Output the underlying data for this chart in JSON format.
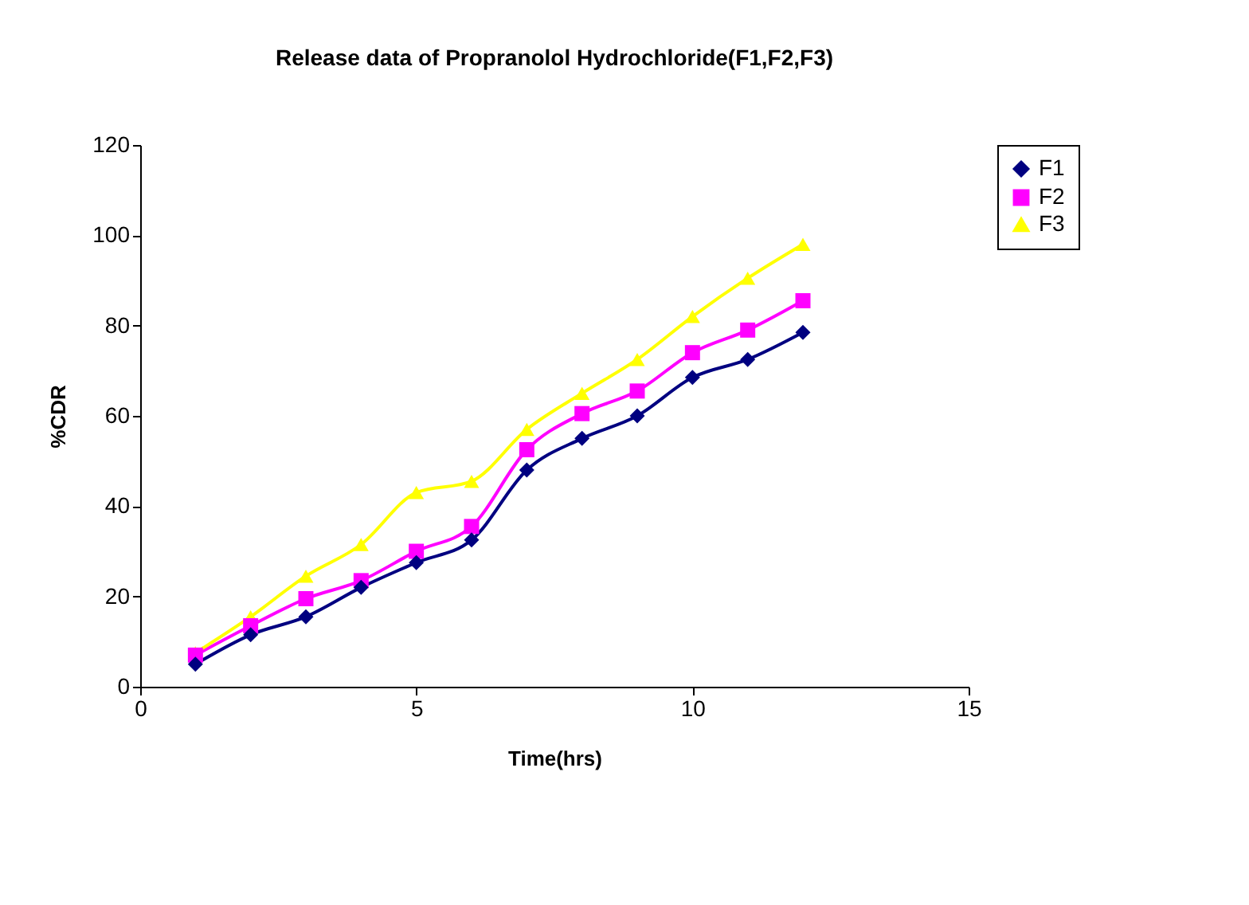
{
  "chart_data": {
    "type": "line",
    "title": "Release data of Propranolol Hydrochloride(F1,F2,F3)",
    "xlabel": "Time(hrs)",
    "ylabel": "%CDR",
    "x": [
      1,
      2,
      3,
      4,
      5,
      6,
      7,
      8,
      9,
      10,
      11,
      12
    ],
    "series": [
      {
        "name": "F1",
        "color": "#000080",
        "marker": "diamond",
        "values": [
          5,
          11.5,
          15.5,
          22,
          27.5,
          32.5,
          48,
          55,
          60,
          68.5,
          72.5,
          78.5
        ]
      },
      {
        "name": "F2",
        "color": "#ff00ff",
        "marker": "square",
        "values": [
          7,
          13.5,
          19.5,
          23.5,
          30,
          35.5,
          52.5,
          60.5,
          65.5,
          74,
          79,
          85.5
        ]
      },
      {
        "name": "F3",
        "color": "#ffff00",
        "marker": "triangle",
        "values": [
          7.5,
          15.5,
          24.5,
          31.5,
          43,
          45.5,
          57,
          65,
          72.5,
          82,
          90.5,
          98
        ]
      }
    ],
    "xlim": [
      0,
      15
    ],
    "xticks": [
      0,
      5,
      10,
      15
    ],
    "ylim": [
      0,
      120
    ],
    "yticks": [
      0,
      20,
      40,
      60,
      80,
      100,
      120
    ],
    "grid": false,
    "legend": "right",
    "line_style": "solid"
  }
}
